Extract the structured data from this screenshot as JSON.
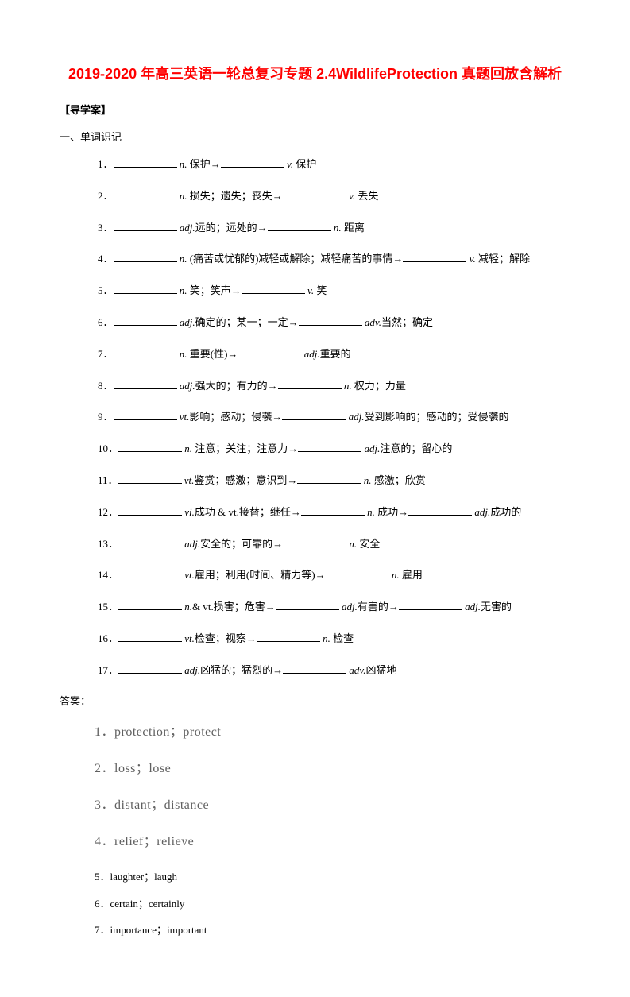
{
  "title": "2019-2020 年高三英语一轮总复习专题 2.4WildlifeProtection 真题回放含解析",
  "section_label": "【导学案】",
  "sub_label": "一、单词识记",
  "items": [
    {
      "num": "1．",
      "parts": [
        "n. 保护→",
        "v. 保护"
      ],
      "blanks": 2
    },
    {
      "num": "2．",
      "parts": [
        "n. 损失；遗失；丧失→",
        "v. 丢失"
      ],
      "blanks": 2
    },
    {
      "num": "3．",
      "parts": [
        "adj.远的；远处的→",
        "n. 距离"
      ],
      "blanks": 2
    },
    {
      "num": "4．",
      "parts": [
        "n. (痛苦或忧郁的)减轻或解除；减轻痛苦的事情→",
        "v. 减轻；解除"
      ],
      "blanks": 2
    },
    {
      "num": "5．",
      "parts": [
        "n. 笑；笑声→",
        "v. 笑"
      ],
      "blanks": 2
    },
    {
      "num": "6．",
      "parts": [
        "adj.确定的；某一；一定→",
        "adv.当然；确定"
      ],
      "blanks": 2
    },
    {
      "num": "7．",
      "parts": [
        "n. 重要(性)→",
        "adj.重要的"
      ],
      "blanks": 2
    },
    {
      "num": "8．",
      "parts": [
        "adj.强大的；有力的→",
        "n. 权力；力量"
      ],
      "blanks": 2
    },
    {
      "num": "9．",
      "parts": [
        "vt.影响；感动；侵袭→",
        "adj.受到影响的；感动的；受侵袭的"
      ],
      "blanks": 2
    },
    {
      "num": "10．",
      "parts": [
        "n. 注意；关注；注意力→",
        "adj.注意的；留心的"
      ],
      "blanks": 2
    },
    {
      "num": "11．",
      "parts": [
        "vt.鉴赏；感激；意识到→",
        "n. 感激；欣赏"
      ],
      "blanks": 2
    },
    {
      "num": "12．",
      "parts": [
        "vi.成功 & vt.接替；继任→",
        "n. 成功→",
        "adj.成功的"
      ],
      "blanks": 3
    },
    {
      "num": "13．",
      "parts": [
        "adj.安全的；可靠的→",
        "n. 安全"
      ],
      "blanks": 2
    },
    {
      "num": "14．",
      "parts": [
        "vt.雇用；利用(时间、精力等)→",
        "n. 雇用"
      ],
      "blanks": 2
    },
    {
      "num": "15．",
      "parts": [
        "n.& vt.损害；危害→",
        "adj.有害的→",
        "adj.无害的"
      ],
      "blanks": 3
    },
    {
      "num": "16．",
      "parts": [
        "vt.检查；视察→",
        "n. 检查"
      ],
      "blanks": 2
    },
    {
      "num": "17．",
      "parts": [
        "adj.凶猛的；猛烈的→",
        "adv.凶猛地"
      ],
      "blanks": 2
    }
  ],
  "answers_label": "答案：",
  "answers_big": [
    "1．protection；protect",
    "2．loss；lose",
    "3．distant；distance",
    "4．relief；relieve"
  ],
  "answers_small": [
    "5．laughter；laugh",
    "6．certain；certainly",
    "7．importance；important"
  ]
}
